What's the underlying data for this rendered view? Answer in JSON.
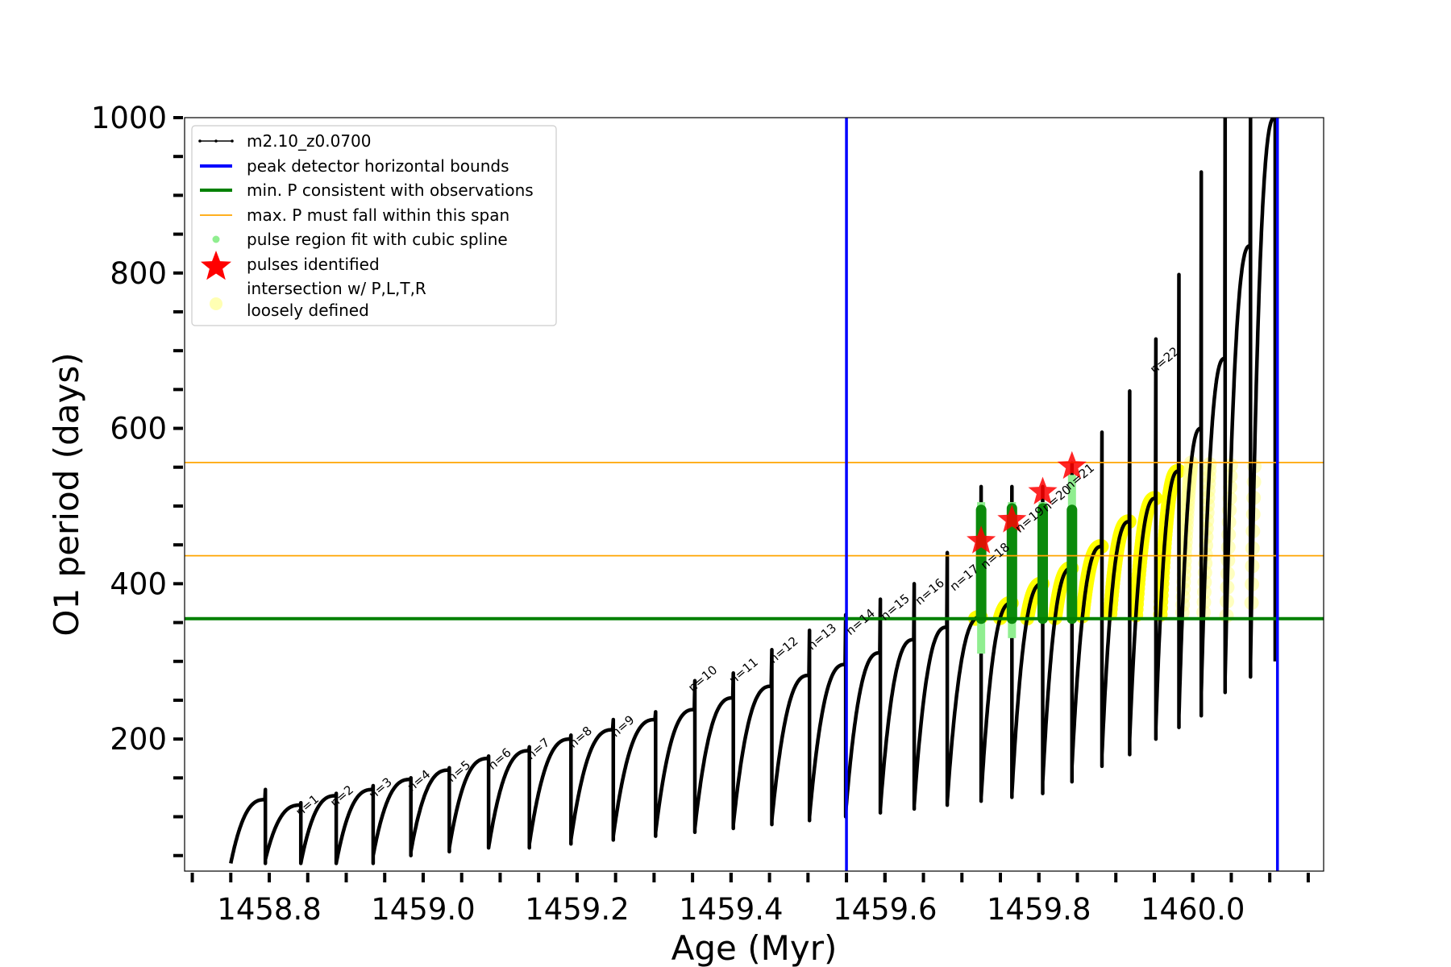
{
  "chart_data": {
    "type": "line",
    "xlabel": "Age (Myr)",
    "ylabel": "O1 period (days)",
    "xlim": [
      1458.69,
      1460.17
    ],
    "ylim": [
      30,
      1000
    ],
    "x_ticks": [
      1458.8,
      1459.0,
      1459.2,
      1459.4,
      1459.6,
      1459.8,
      1460.0
    ],
    "x_tick_labels": [
      "1458.8",
      "1459.0",
      "1459.2",
      "1459.4",
      "1459.6",
      "1459.8",
      "1460.0"
    ],
    "x_minor_step": 0.05,
    "y_ticks": [
      200,
      400,
      600,
      800,
      1000
    ],
    "y_tick_labels": [
      "200",
      "400",
      "600",
      "800",
      "1000"
    ],
    "y_minor_step": 50,
    "grid": false,
    "legend_position": "upper-left",
    "legend": [
      {
        "label": "m2.10_z0.0700",
        "style": "line-dots",
        "color": "#000000"
      },
      {
        "label": "peak detector horizontal bounds",
        "style": "line",
        "color": "#0000ff"
      },
      {
        "label": "min. P consistent with observations",
        "style": "line",
        "color": "#008000"
      },
      {
        "label": "max. P must fall within this span",
        "style": "thin-line",
        "color": "#ffa500"
      },
      {
        "label": "pulse region fit with cubic spline",
        "style": "dot",
        "color": "#90ee90"
      },
      {
        "label": "pulses identified",
        "style": "star",
        "color": "#ff0000"
      },
      {
        "label": "intersection w/ P,L,T,R",
        "label2": "loosely defined",
        "style": "circle",
        "color": "#ffff99"
      }
    ],
    "vertical_lines": [
      {
        "x": 1459.55,
        "color": "#0000ff"
      },
      {
        "x": 1460.11,
        "color": "#0000ff"
      }
    ],
    "horizontal_lines": [
      {
        "y": 355,
        "color": "#008000",
        "role": "min"
      },
      {
        "y": 436,
        "color": "#ffa500",
        "role": "span-low"
      },
      {
        "y": 556,
        "color": "#ffa500",
        "role": "span-high"
      }
    ],
    "cycles": [
      {
        "start": 1458.75,
        "end": 1458.795,
        "min": 40,
        "max": 122,
        "spike": 135
      },
      {
        "start": 1458.795,
        "end": 1458.841,
        "min": 45,
        "max": 115,
        "spike": 118
      },
      {
        "start": 1458.841,
        "end": 1458.887,
        "min": 40,
        "max": 127,
        "spike": 130
      },
      {
        "start": 1458.887,
        "end": 1458.935,
        "min": 40,
        "max": 135,
        "spike": 140
      },
      {
        "start": 1458.935,
        "end": 1458.984,
        "min": 50,
        "max": 148,
        "spike": 150
      },
      {
        "start": 1458.984,
        "end": 1459.034,
        "min": 55,
        "max": 160,
        "spike": 163
      },
      {
        "start": 1459.034,
        "end": 1459.085,
        "min": 60,
        "max": 175,
        "spike": 178
      },
      {
        "start": 1459.085,
        "end": 1459.138,
        "min": 60,
        "max": 185,
        "spike": 190
      },
      {
        "start": 1459.138,
        "end": 1459.192,
        "min": 65,
        "max": 200,
        "spike": 205
      },
      {
        "start": 1459.192,
        "end": 1459.247,
        "min": 70,
        "max": 212,
        "spike": 225
      },
      {
        "start": 1459.247,
        "end": 1459.302,
        "min": 75,
        "max": 225,
        "spike": 235
      },
      {
        "start": 1459.302,
        "end": 1459.353,
        "min": 80,
        "max": 238,
        "spike": 275
      },
      {
        "start": 1459.353,
        "end": 1459.403,
        "min": 85,
        "max": 253,
        "spike": 285
      },
      {
        "start": 1459.403,
        "end": 1459.453,
        "min": 90,
        "max": 268,
        "spike": 315
      },
      {
        "start": 1459.453,
        "end": 1459.502,
        "min": 95,
        "max": 282,
        "spike": 340
      },
      {
        "start": 1459.502,
        "end": 1459.549,
        "min": 100,
        "max": 296,
        "spike": 360
      },
      {
        "start": 1459.549,
        "end": 1459.594,
        "min": 105,
        "max": 311,
        "spike": 380
      },
      {
        "start": 1459.594,
        "end": 1459.638,
        "min": 110,
        "max": 328,
        "spike": 400
      },
      {
        "start": 1459.638,
        "end": 1459.681,
        "min": 115,
        "max": 344,
        "spike": 440
      },
      {
        "start": 1459.681,
        "end": 1459.725,
        "min": 120,
        "max": 357,
        "spike": 525
      },
      {
        "start": 1459.725,
        "end": 1459.765,
        "min": 125,
        "max": 375,
        "spike": 525
      },
      {
        "start": 1459.765,
        "end": 1459.805,
        "min": 130,
        "max": 400,
        "spike": 525
      },
      {
        "start": 1459.805,
        "end": 1459.843,
        "min": 145,
        "max": 420,
        "spike": 555
      },
      {
        "start": 1459.843,
        "end": 1459.882,
        "min": 165,
        "max": 448,
        "spike": 595
      },
      {
        "start": 1459.882,
        "end": 1459.918,
        "min": 180,
        "max": 480,
        "spike": 648
      },
      {
        "start": 1459.918,
        "end": 1459.952,
        "min": 200,
        "max": 510,
        "spike": 715
      },
      {
        "start": 1459.952,
        "end": 1459.982,
        "min": 215,
        "max": 545,
        "spike": 798
      },
      {
        "start": 1459.982,
        "end": 1460.011,
        "min": 230,
        "max": 600,
        "spike": 930
      },
      {
        "start": 1460.011,
        "end": 1460.042,
        "min": 260,
        "max": 690,
        "spike": 1000
      },
      {
        "start": 1460.042,
        "end": 1460.075,
        "min": 280,
        "max": 835,
        "spike": 1000
      },
      {
        "start": 1460.075,
        "end": 1460.107,
        "min": 300,
        "max": 1000,
        "spike": 1000
      }
    ],
    "pulse_labels": [
      {
        "text": "n=1",
        "x": 1458.84,
        "y": 100
      },
      {
        "text": "n=2",
        "x": 1458.885,
        "y": 112
      },
      {
        "text": "n=3",
        "x": 1458.935,
        "y": 122
      },
      {
        "text": "n=4",
        "x": 1458.985,
        "y": 132
      },
      {
        "text": "n=5",
        "x": 1459.037,
        "y": 144
      },
      {
        "text": "n=6",
        "x": 1459.09,
        "y": 160
      },
      {
        "text": "n=7",
        "x": 1459.14,
        "y": 173
      },
      {
        "text": "n=8",
        "x": 1459.195,
        "y": 188
      },
      {
        "text": "n=9",
        "x": 1459.25,
        "y": 202
      },
      {
        "text": "n=10",
        "x": 1459.35,
        "y": 260
      },
      {
        "text": "n=11",
        "x": 1459.403,
        "y": 270
      },
      {
        "text": "n=12",
        "x": 1459.455,
        "y": 297
      },
      {
        "text": "n=13",
        "x": 1459.505,
        "y": 314
      },
      {
        "text": "n=14",
        "x": 1459.555,
        "y": 333
      },
      {
        "text": "n=15",
        "x": 1459.6,
        "y": 352
      },
      {
        "text": "n=16",
        "x": 1459.645,
        "y": 372
      },
      {
        "text": "n=17",
        "x": 1459.69,
        "y": 390
      },
      {
        "text": "n=18",
        "x": 1459.73,
        "y": 418
      },
      {
        "text": "n=19",
        "x": 1459.775,
        "y": 465
      },
      {
        "text": "n=20",
        "x": 1459.81,
        "y": 492
      },
      {
        "text": "n=21",
        "x": 1459.84,
        "y": 520
      },
      {
        "text": "n=22",
        "x": 1459.95,
        "y": 670
      }
    ],
    "pulses_identified": [
      {
        "x": 1459.725,
        "y": 455
      },
      {
        "x": 1459.765,
        "y": 482
      },
      {
        "x": 1459.805,
        "y": 518
      },
      {
        "x": 1459.843,
        "y": 551
      }
    ],
    "spline_regions": [
      {
        "x": 1459.725,
        "y_low": 355,
        "y_high": 495,
        "pale_low": 310,
        "pale_high": 505
      },
      {
        "x": 1459.765,
        "y_low": 355,
        "y_high": 497,
        "pale_low": 330,
        "pale_high": 505
      },
      {
        "x": 1459.805,
        "y_low": 355,
        "y_high": 497,
        "pale_low": 355,
        "pale_high": 505
      },
      {
        "x": 1459.843,
        "y_low": 355,
        "y_high": 495,
        "pale_low": 355,
        "pale_high": 540
      }
    ]
  }
}
